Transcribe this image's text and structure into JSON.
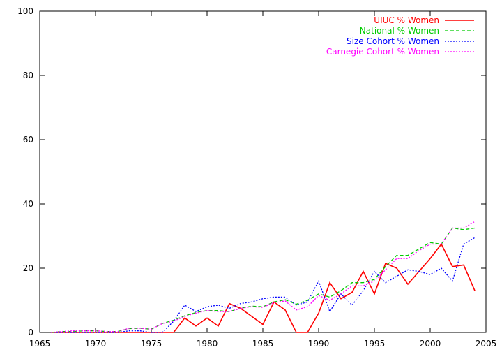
{
  "chart_data": {
    "type": "line",
    "title": "",
    "xlabel": "",
    "ylabel": "",
    "xlim": [
      1965,
      2005
    ],
    "ylim": [
      0,
      100
    ],
    "x_ticks": [
      1965,
      1970,
      1975,
      1980,
      1985,
      1990,
      1995,
      2000,
      2005
    ],
    "y_ticks": [
      0,
      20,
      40,
      60,
      80,
      100
    ],
    "x_tick_labels": [
      "1965",
      "1970",
      "1975",
      "1980",
      "1985",
      "1990",
      "1995",
      "2000",
      "2005"
    ],
    "y_tick_labels": [
      "0",
      "20",
      "40",
      "60",
      "80",
      "100"
    ],
    "grid": false,
    "legend_position": "top-right",
    "x": [
      1966,
      1967,
      1968,
      1969,
      1970,
      1971,
      1972,
      1973,
      1974,
      1975,
      1976,
      1977,
      1978,
      1979,
      1980,
      1981,
      1982,
      1983,
      1984,
      1985,
      1986,
      1987,
      1988,
      1989,
      1990,
      1991,
      1992,
      1993,
      1994,
      1995,
      1996,
      1997,
      1998,
      1999,
      2000,
      2001,
      2002,
      2003,
      2004
    ],
    "series": [
      {
        "name": "UIUC % Women",
        "color": "#ff0000",
        "dash": "solid",
        "values": [
          0,
          0,
          0,
          0,
          0,
          0,
          0,
          0,
          0,
          0,
          0,
          0,
          4.5,
          2,
          4.5,
          2,
          9,
          7.5,
          5,
          2.5,
          9.5,
          7,
          0,
          0,
          6,
          15.5,
          10.5,
          12.5,
          19,
          12,
          21.5,
          20,
          15,
          19,
          23,
          27.5,
          20.5,
          21,
          13
        ]
      },
      {
        "name": "National % Women",
        "color": "#00cc00",
        "dash": "dashed",
        "values": [
          0,
          0.3,
          0.3,
          0.5,
          0.5,
          0.3,
          0.3,
          1.2,
          1.3,
          1,
          2.8,
          3.8,
          5.2,
          6.2,
          6.8,
          6.8,
          6.5,
          7.5,
          8.2,
          8,
          9.5,
          10.2,
          8.8,
          10,
          12,
          11,
          13,
          15.5,
          15.5,
          16.5,
          20.5,
          24,
          24,
          26,
          28,
          27.5,
          32.5,
          32,
          32.5
        ]
      },
      {
        "name": "Size Cohort % Women",
        "color": "#0000ff",
        "dash": "dotted",
        "values": [
          0,
          0,
          0,
          0,
          0,
          0,
          0,
          0.5,
          0.5,
          0,
          0,
          3.5,
          8.5,
          6.5,
          8,
          8.5,
          7.5,
          9,
          9.5,
          10.5,
          11,
          11,
          8.5,
          9.5,
          16,
          6.5,
          12,
          8.5,
          13,
          19,
          15.5,
          17.5,
          19.5,
          19,
          18,
          20,
          16,
          27.5,
          29.5
        ]
      },
      {
        "name": "Carnegie Cohort % Women",
        "color": "#ff00ff",
        "dash": "dotted",
        "values": [
          0,
          0.3,
          0.5,
          0.5,
          0.5,
          0.3,
          0.3,
          1.3,
          1.3,
          1,
          2.8,
          3.5,
          5,
          6,
          6.8,
          6.5,
          6.5,
          7.5,
          8,
          7.8,
          9.3,
          9.8,
          7,
          8,
          11.5,
          10,
          12,
          14.5,
          14.5,
          16,
          19.5,
          23,
          23,
          25.5,
          27.5,
          27.5,
          32.5,
          32.5,
          34.5
        ]
      }
    ]
  }
}
